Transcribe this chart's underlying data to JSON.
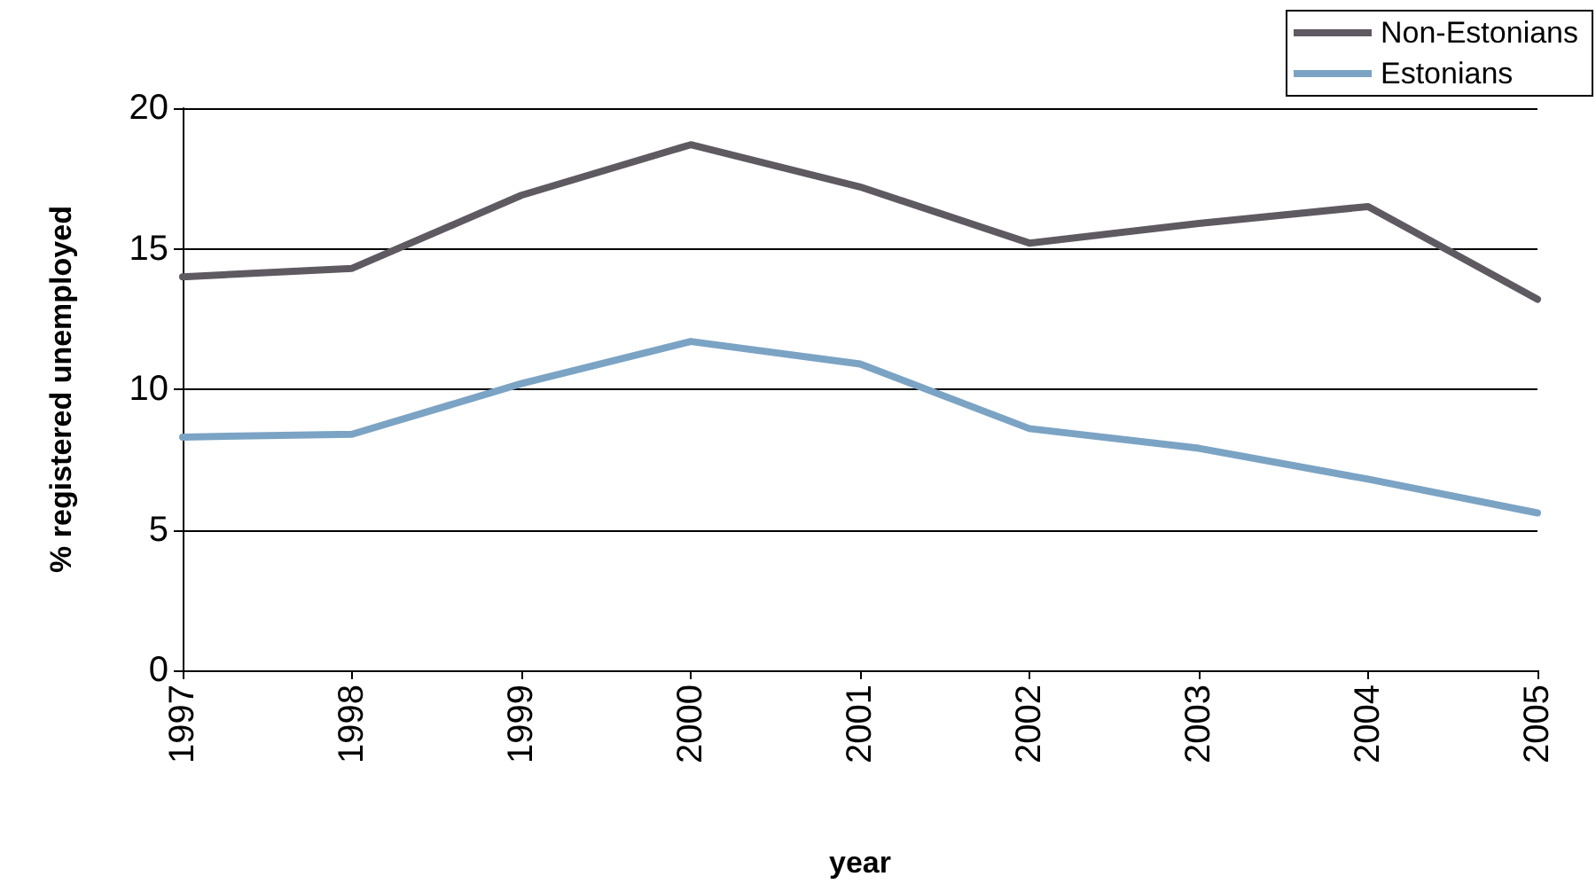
{
  "chart_data": {
    "type": "line",
    "xlabel": "year",
    "ylabel": "% registered unemployed",
    "categories": [
      "1997",
      "1998",
      "1999",
      "2000",
      "2001",
      "2002",
      "2003",
      "2004",
      "2005"
    ],
    "series": [
      {
        "name": "Non-Estonians",
        "color": "#5f5a61",
        "values": [
          14.0,
          14.3,
          16.9,
          18.7,
          17.2,
          15.2,
          15.9,
          16.5,
          13.2
        ]
      },
      {
        "name": "Estonians",
        "color": "#7ba3c4",
        "values": [
          8.3,
          8.4,
          10.2,
          11.7,
          10.9,
          8.6,
          7.9,
          6.8,
          5.6
        ]
      }
    ],
    "ylim": [
      0,
      20
    ],
    "yticks": [
      0,
      5,
      10,
      15,
      20
    ],
    "grid": "y",
    "legend": "top right",
    "marker": "none",
    "line_style": "solid"
  }
}
